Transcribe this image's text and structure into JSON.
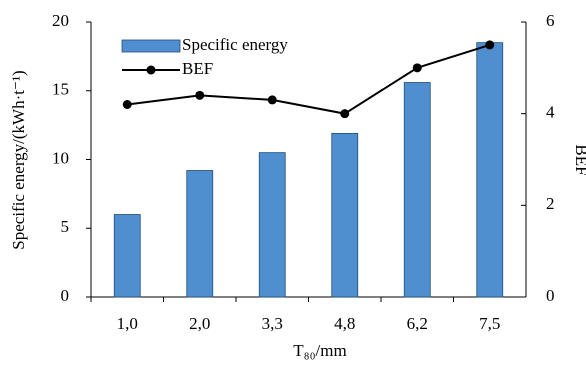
{
  "chart_data": {
    "type": "bar-line",
    "xlabel": "T₈₀/mm",
    "ylabel": "Specific energy/(kWh·t⁻¹)",
    "y2label": "BEF",
    "categories": [
      "1,0",
      "2,0",
      "3,3",
      "4,8",
      "6,2",
      "7,5"
    ],
    "series": [
      {
        "name": "Specific energy",
        "type": "bar",
        "color": "#4f8fd0",
        "values": [
          6.0,
          9.2,
          10.5,
          11.9,
          15.6,
          18.5
        ]
      },
      {
        "name": "BEF",
        "type": "line",
        "color": "#000000",
        "axis": "y2",
        "values": [
          4.2,
          4.4,
          4.3,
          4.0,
          5.0,
          5.5
        ]
      }
    ],
    "ylim": [
      0,
      20
    ],
    "yticks": [
      0,
      5,
      10,
      15,
      20
    ],
    "y2lim": [
      0,
      6
    ],
    "y2ticks": [
      0,
      2,
      4,
      6
    ],
    "legend": "upper left"
  }
}
